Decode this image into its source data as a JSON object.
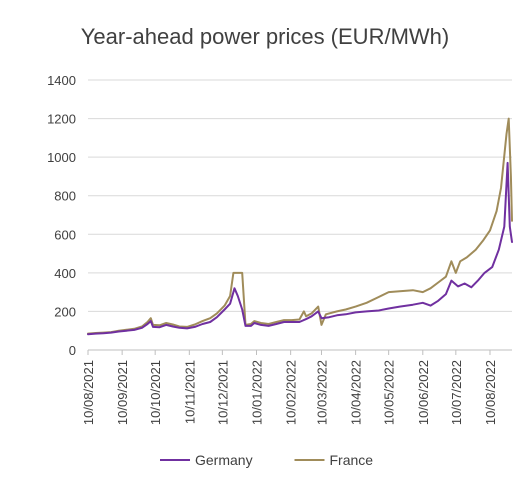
{
  "chart_data": {
    "type": "line",
    "title": "Year-ahead power prices (EUR/MWh)",
    "xlabel": "",
    "ylabel": "",
    "ylim": [
      0,
      1400
    ],
    "yticks": [
      0,
      200,
      400,
      600,
      800,
      1000,
      1200,
      1400
    ],
    "xlim": [
      "2021-08-10",
      "2022-08-30"
    ],
    "xticks": [
      "10/08/2021",
      "10/09/2021",
      "10/10/2021",
      "10/11/2021",
      "10/12/2021",
      "10/01/2022",
      "10/02/2022",
      "10/03/2022",
      "10/04/2022",
      "10/05/2022",
      "10/06/2022",
      "10/07/2022",
      "10/08/2022"
    ],
    "grid": "horizontal",
    "legend": "bottom",
    "series": [
      {
        "name": "Germany",
        "color": "#7030a0",
        "points": [
          [
            "2021-08-10",
            82
          ],
          [
            "2021-08-17",
            85
          ],
          [
            "2021-08-24",
            87
          ],
          [
            "2021-08-31",
            90
          ],
          [
            "2021-09-07",
            96
          ],
          [
            "2021-09-14",
            100
          ],
          [
            "2021-09-21",
            104
          ],
          [
            "2021-09-28",
            115
          ],
          [
            "2021-10-03",
            135
          ],
          [
            "2021-10-06",
            150
          ],
          [
            "2021-10-08",
            120
          ],
          [
            "2021-10-14",
            118
          ],
          [
            "2021-10-20",
            130
          ],
          [
            "2021-10-26",
            122
          ],
          [
            "2021-11-01",
            115
          ],
          [
            "2021-11-08",
            112
          ],
          [
            "2021-11-15",
            120
          ],
          [
            "2021-11-22",
            135
          ],
          [
            "2021-11-29",
            145
          ],
          [
            "2021-12-05",
            170
          ],
          [
            "2021-12-12",
            210
          ],
          [
            "2021-12-17",
            240
          ],
          [
            "2021-12-21",
            320
          ],
          [
            "2021-12-24",
            280
          ],
          [
            "2021-12-28",
            210
          ],
          [
            "2021-12-31",
            125
          ],
          [
            "2022-01-05",
            125
          ],
          [
            "2022-01-08",
            140
          ],
          [
            "2022-01-14",
            130
          ],
          [
            "2022-01-21",
            125
          ],
          [
            "2022-01-28",
            135
          ],
          [
            "2022-02-04",
            145
          ],
          [
            "2022-02-11",
            145
          ],
          [
            "2022-02-18",
            145
          ],
          [
            "2022-02-24",
            160
          ],
          [
            "2022-03-01",
            175
          ],
          [
            "2022-03-07",
            200
          ],
          [
            "2022-03-10",
            165
          ],
          [
            "2022-03-17",
            170
          ],
          [
            "2022-03-24",
            180
          ],
          [
            "2022-04-01",
            185
          ],
          [
            "2022-04-10",
            195
          ],
          [
            "2022-04-20",
            200
          ],
          [
            "2022-05-01",
            205
          ],
          [
            "2022-05-10",
            215
          ],
          [
            "2022-05-20",
            225
          ],
          [
            "2022-06-01",
            235
          ],
          [
            "2022-06-10",
            245
          ],
          [
            "2022-06-17",
            230
          ],
          [
            "2022-06-24",
            255
          ],
          [
            "2022-07-01",
            290
          ],
          [
            "2022-07-06",
            360
          ],
          [
            "2022-07-12",
            330
          ],
          [
            "2022-07-18",
            345
          ],
          [
            "2022-07-24",
            325
          ],
          [
            "2022-07-30",
            360
          ],
          [
            "2022-08-05",
            400
          ],
          [
            "2022-08-12",
            430
          ],
          [
            "2022-08-18",
            520
          ],
          [
            "2022-08-23",
            640
          ],
          [
            "2022-08-26",
            970
          ],
          [
            "2022-08-28",
            640
          ],
          [
            "2022-08-30",
            560
          ]
        ]
      },
      {
        "name": "France",
        "color": "#a08c5a",
        "points": [
          [
            "2021-08-10",
            85
          ],
          [
            "2021-08-17",
            88
          ],
          [
            "2021-08-24",
            90
          ],
          [
            "2021-08-31",
            93
          ],
          [
            "2021-09-07",
            100
          ],
          [
            "2021-09-14",
            105
          ],
          [
            "2021-09-21",
            110
          ],
          [
            "2021-09-28",
            122
          ],
          [
            "2021-10-03",
            145
          ],
          [
            "2021-10-06",
            165
          ],
          [
            "2021-10-08",
            130
          ],
          [
            "2021-10-14",
            128
          ],
          [
            "2021-10-20",
            140
          ],
          [
            "2021-10-26",
            132
          ],
          [
            "2021-11-01",
            122
          ],
          [
            "2021-11-08",
            120
          ],
          [
            "2021-11-15",
            132
          ],
          [
            "2021-11-22",
            150
          ],
          [
            "2021-11-29",
            165
          ],
          [
            "2021-12-05",
            190
          ],
          [
            "2021-12-12",
            230
          ],
          [
            "2021-12-17",
            280
          ],
          [
            "2021-12-20",
            400
          ],
          [
            "2021-12-28",
            400
          ],
          [
            "2021-12-31",
            130
          ],
          [
            "2022-01-05",
            135
          ],
          [
            "2022-01-08",
            150
          ],
          [
            "2022-01-14",
            140
          ],
          [
            "2022-01-21",
            135
          ],
          [
            "2022-01-28",
            145
          ],
          [
            "2022-02-04",
            155
          ],
          [
            "2022-02-11",
            155
          ],
          [
            "2022-02-18",
            158
          ],
          [
            "2022-02-22",
            200
          ],
          [
            "2022-02-24",
            175
          ],
          [
            "2022-03-01",
            190
          ],
          [
            "2022-03-07",
            225
          ],
          [
            "2022-03-10",
            130
          ],
          [
            "2022-03-14",
            185
          ],
          [
            "2022-03-24",
            200
          ],
          [
            "2022-04-01",
            210
          ],
          [
            "2022-04-10",
            225
          ],
          [
            "2022-04-20",
            245
          ],
          [
            "2022-05-01",
            275
          ],
          [
            "2022-05-10",
            300
          ],
          [
            "2022-05-20",
            305
          ],
          [
            "2022-06-01",
            310
          ],
          [
            "2022-06-10",
            300
          ],
          [
            "2022-06-17",
            320
          ],
          [
            "2022-06-24",
            350
          ],
          [
            "2022-07-01",
            380
          ],
          [
            "2022-07-06",
            460
          ],
          [
            "2022-07-10",
            400
          ],
          [
            "2022-07-14",
            460
          ],
          [
            "2022-07-20",
            480
          ],
          [
            "2022-07-28",
            520
          ],
          [
            "2022-08-04",
            570
          ],
          [
            "2022-08-10",
            620
          ],
          [
            "2022-08-16",
            720
          ],
          [
            "2022-08-20",
            840
          ],
          [
            "2022-08-25",
            1120
          ],
          [
            "2022-08-27",
            1200
          ],
          [
            "2022-08-29",
            900
          ],
          [
            "2022-08-30",
            670
          ]
        ]
      }
    ]
  }
}
